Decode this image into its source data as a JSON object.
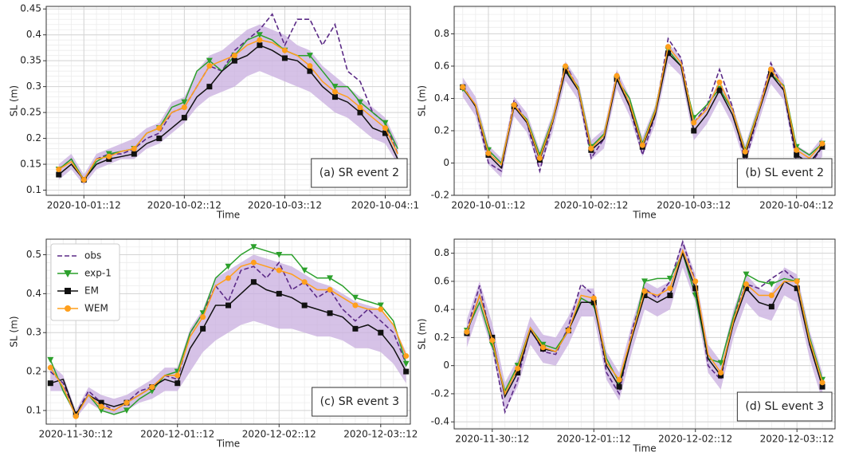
{
  "chart_data": [
    {
      "type": "line",
      "y_label": "SL (m)",
      "x_label": "Time",
      "annotation": "(a) SR event 2",
      "grid": true,
      "x": [
        "2020-10-01::06",
        "2020-10-01::09",
        "2020-10-01::12",
        "2020-10-01::15",
        "2020-10-01::18",
        "2020-10-01::21",
        "2020-10-02::00",
        "2020-10-02::03",
        "2020-10-02::06",
        "2020-10-02::09",
        "2020-10-02::12",
        "2020-10-02::15",
        "2020-10-02::18",
        "2020-10-02::21",
        "2020-10-03::00",
        "2020-10-03::03",
        "2020-10-03::06",
        "2020-10-03::09",
        "2020-10-03::12",
        "2020-10-03::15",
        "2020-10-03::18",
        "2020-10-03::21",
        "2020-10-04::00",
        "2020-10-04::03",
        "2020-10-04::06",
        "2020-10-04::09",
        "2020-10-04::12",
        "2020-10-04::15"
      ],
      "xlim": [
        "2020-10-01::03",
        "2020-10-04::18"
      ],
      "xticks": [
        "2020-10-01::12",
        "2020-10-02::12",
        "2020-10-03::12",
        {
          "value": "2020-10-04::12",
          "label": "2020-10-04::1"
        }
      ],
      "ylim": [
        0.09,
        0.455
      ],
      "yticks": [
        0.1,
        0.15,
        0.2,
        0.25,
        0.3,
        0.35,
        0.4,
        0.45
      ],
      "band": {
        "color": "#c8addf",
        "lower": [
          0.12,
          0.14,
          0.11,
          0.14,
          0.15,
          0.16,
          0.16,
          0.18,
          0.19,
          0.21,
          0.23,
          0.26,
          0.28,
          0.29,
          0.3,
          0.32,
          0.33,
          0.32,
          0.31,
          0.3,
          0.29,
          0.27,
          0.25,
          0.24,
          0.22,
          0.2,
          0.19,
          0.15
        ],
        "upper": [
          0.15,
          0.17,
          0.13,
          0.17,
          0.18,
          0.19,
          0.2,
          0.22,
          0.23,
          0.27,
          0.28,
          0.33,
          0.36,
          0.37,
          0.39,
          0.41,
          0.42,
          0.41,
          0.4,
          0.38,
          0.37,
          0.34,
          0.32,
          0.3,
          0.28,
          0.26,
          0.24,
          0.19
        ]
      },
      "series": [
        {
          "color": "#5b2a86",
          "dashed": true,
          "values": [
            0.14,
            0.16,
            0.12,
            0.16,
            0.17,
            0.17,
            0.18,
            0.2,
            0.21,
            0.25,
            0.26,
            0.3,
            0.34,
            0.33,
            0.37,
            0.39,
            0.41,
            0.44,
            0.38,
            0.43,
            0.43,
            0.38,
            0.42,
            0.33,
            0.31,
            0.25,
            0.23,
            0.17
          ]
        },
        {
          "color": "#2ca02c",
          "marker": "triangle-down",
          "values": [
            0.14,
            0.16,
            0.12,
            0.155,
            0.17,
            0.175,
            0.18,
            0.21,
            0.22,
            0.26,
            0.27,
            0.33,
            0.35,
            0.33,
            0.36,
            0.39,
            0.4,
            0.39,
            0.37,
            0.36,
            0.36,
            0.33,
            0.3,
            0.3,
            0.27,
            0.25,
            0.23,
            0.18
          ]
        },
        {
          "color": "#111111",
          "marker": "square",
          "values": [
            0.13,
            0.15,
            0.12,
            0.15,
            0.16,
            0.165,
            0.17,
            0.19,
            0.2,
            0.22,
            0.24,
            0.28,
            0.3,
            0.33,
            0.35,
            0.36,
            0.38,
            0.37,
            0.355,
            0.35,
            0.33,
            0.3,
            0.28,
            0.27,
            0.25,
            0.22,
            0.21,
            0.16
          ]
        },
        {
          "color": "#ff9f1c",
          "marker": "circle",
          "values": [
            0.14,
            0.155,
            0.12,
            0.16,
            0.165,
            0.175,
            0.18,
            0.21,
            0.22,
            0.25,
            0.26,
            0.3,
            0.34,
            0.35,
            0.36,
            0.38,
            0.39,
            0.385,
            0.37,
            0.36,
            0.34,
            0.31,
            0.29,
            0.28,
            0.26,
            0.24,
            0.22,
            0.17
          ]
        }
      ]
    },
    {
      "type": "line",
      "y_label": "SL (m)",
      "x_label": "Time",
      "annotation": "(b) SL event 2",
      "grid": true,
      "x": [
        "2020-10-01::06",
        "2020-10-01::09",
        "2020-10-01::12",
        "2020-10-01::15",
        "2020-10-01::18",
        "2020-10-01::21",
        "2020-10-02::00",
        "2020-10-02::03",
        "2020-10-02::06",
        "2020-10-02::09",
        "2020-10-02::12",
        "2020-10-02::15",
        "2020-10-02::18",
        "2020-10-02::21",
        "2020-10-03::00",
        "2020-10-03::03",
        "2020-10-03::06",
        "2020-10-03::09",
        "2020-10-03::12",
        "2020-10-03::15",
        "2020-10-03::18",
        "2020-10-03::21",
        "2020-10-04::00",
        "2020-10-04::03",
        "2020-10-04::06",
        "2020-10-04::09",
        "2020-10-04::12",
        "2020-10-04::15",
        "2020-10-04::18"
      ],
      "xlim": [
        "2020-10-01::04",
        "2020-10-04::21"
      ],
      "xticks": [
        "2020-10-01::12",
        "2020-10-02::12",
        "2020-10-03::12",
        "2020-10-04::12"
      ],
      "ylim": [
        -0.2,
        0.97
      ],
      "yticks": [
        -0.2,
        0.0,
        0.2,
        0.4,
        0.6,
        0.8
      ],
      "band": {
        "color": "#c8addf",
        "lower": [
          0.41,
          0.29,
          -0.01,
          -0.09,
          0.29,
          0.19,
          -0.04,
          0.19,
          0.51,
          0.39,
          0.02,
          0.09,
          0.46,
          0.29,
          0.04,
          0.24,
          0.62,
          0.54,
          0.14,
          0.24,
          0.39,
          0.24,
          -0.01,
          0.24,
          0.49,
          0.39,
          -0.01,
          -0.06,
          0.04
        ],
        "upper": [
          0.53,
          0.41,
          0.11,
          0.03,
          0.41,
          0.31,
          0.08,
          0.31,
          0.63,
          0.51,
          0.14,
          0.21,
          0.58,
          0.41,
          0.16,
          0.36,
          0.74,
          0.66,
          0.26,
          0.36,
          0.51,
          0.36,
          0.11,
          0.36,
          0.61,
          0.51,
          0.11,
          0.06,
          0.16
        ]
      },
      "series": [
        {
          "color": "#5b2a86",
          "dashed": true,
          "values": [
            0.48,
            0.35,
            0.0,
            -0.05,
            0.39,
            0.25,
            -0.05,
            0.25,
            0.62,
            0.45,
            0.03,
            0.15,
            0.55,
            0.35,
            0.05,
            0.3,
            0.77,
            0.65,
            0.25,
            0.35,
            0.58,
            0.35,
            0.0,
            0.3,
            0.62,
            0.45,
            0.0,
            -0.02,
            0.1
          ]
        },
        {
          "color": "#2ca02c",
          "marker": "triangle-down",
          "values": [
            0.46,
            0.36,
            0.08,
            0.0,
            0.35,
            0.27,
            0.05,
            0.27,
            0.58,
            0.47,
            0.1,
            0.18,
            0.52,
            0.4,
            0.12,
            0.33,
            0.7,
            0.6,
            0.28,
            0.36,
            0.46,
            0.33,
            0.08,
            0.32,
            0.55,
            0.48,
            0.1,
            0.05,
            0.12
          ]
        },
        {
          "color": "#111111",
          "marker": "square",
          "values": [
            0.47,
            0.35,
            0.05,
            -0.03,
            0.35,
            0.25,
            0.02,
            0.25,
            0.57,
            0.45,
            0.08,
            0.15,
            0.52,
            0.35,
            0.1,
            0.3,
            0.68,
            0.6,
            0.2,
            0.3,
            0.45,
            0.3,
            0.05,
            0.3,
            0.55,
            0.45,
            0.05,
            0.0,
            0.1
          ]
        },
        {
          "color": "#ff9f1c",
          "marker": "circle",
          "values": [
            0.47,
            0.36,
            0.06,
            -0.01,
            0.36,
            0.26,
            0.03,
            0.26,
            0.6,
            0.46,
            0.09,
            0.17,
            0.54,
            0.37,
            0.11,
            0.32,
            0.72,
            0.62,
            0.25,
            0.33,
            0.5,
            0.33,
            0.07,
            0.31,
            0.58,
            0.47,
            0.08,
            0.03,
            0.12
          ]
        }
      ]
    },
    {
      "type": "line",
      "y_label": "SL (m)",
      "x_label": "Time",
      "annotation": "(c) SR event 3",
      "grid": true,
      "legend": "upper left",
      "x": [
        "2020-11-30::06",
        "2020-11-30::09",
        "2020-11-30::12",
        "2020-11-30::15",
        "2020-11-30::18",
        "2020-11-30::21",
        "2020-12-01::00",
        "2020-12-01::03",
        "2020-12-01::06",
        "2020-12-01::09",
        "2020-12-01::12",
        "2020-12-01::15",
        "2020-12-01::18",
        "2020-12-01::21",
        "2020-12-02::00",
        "2020-12-02::03",
        "2020-12-02::06",
        "2020-12-02::09",
        "2020-12-02::12",
        "2020-12-02::15",
        "2020-12-02::18",
        "2020-12-02::21",
        "2020-12-03::00",
        "2020-12-03::03",
        "2020-12-03::06",
        "2020-12-03::09",
        "2020-12-03::12",
        "2020-12-03::15",
        "2020-12-03::18"
      ],
      "xlim": [
        "2020-11-30::05",
        "2020-12-03::19"
      ],
      "xticks": [
        "2020-11-30::12",
        "2020-12-01::12",
        "2020-12-02::12",
        "2020-12-03::12"
      ],
      "ylim": [
        0.065,
        0.54
      ],
      "yticks": [
        0.1,
        0.2,
        0.3,
        0.4,
        0.5
      ],
      "band": {
        "color": "#c8addf",
        "lower": [
          0.15,
          0.15,
          0.08,
          0.12,
          0.1,
          0.09,
          0.1,
          0.12,
          0.13,
          0.15,
          0.15,
          0.2,
          0.25,
          0.28,
          0.3,
          0.32,
          0.33,
          0.32,
          0.31,
          0.31,
          0.3,
          0.29,
          0.29,
          0.28,
          0.26,
          0.26,
          0.25,
          0.22,
          0.17
        ],
        "upper": [
          0.22,
          0.19,
          0.1,
          0.16,
          0.14,
          0.13,
          0.14,
          0.16,
          0.18,
          0.21,
          0.21,
          0.31,
          0.36,
          0.44,
          0.46,
          0.48,
          0.5,
          0.49,
          0.48,
          0.47,
          0.45,
          0.43,
          0.42,
          0.4,
          0.38,
          0.37,
          0.36,
          0.32,
          0.25
        ]
      },
      "series": [
        {
          "name": "obs",
          "color": "#5b2a86",
          "dashed": true,
          "values": [
            0.2,
            0.17,
            0.09,
            0.15,
            0.12,
            0.1,
            0.12,
            0.15,
            0.16,
            0.19,
            0.18,
            0.3,
            0.35,
            0.42,
            0.38,
            0.46,
            0.47,
            0.44,
            0.48,
            0.41,
            0.43,
            0.39,
            0.41,
            0.36,
            0.33,
            0.36,
            0.33,
            0.3,
            0.22
          ]
        },
        {
          "name": "exp-1",
          "color": "#2ca02c",
          "marker": "triangle-down",
          "values": [
            0.23,
            0.15,
            0.09,
            0.14,
            0.1,
            0.09,
            0.1,
            0.13,
            0.15,
            0.19,
            0.2,
            0.3,
            0.35,
            0.44,
            0.47,
            0.5,
            0.52,
            0.51,
            0.5,
            0.5,
            0.46,
            0.44,
            0.44,
            0.42,
            0.39,
            0.38,
            0.37,
            0.33,
            0.22
          ]
        },
        {
          "name": "EM",
          "color": "#111111",
          "marker": "square",
          "values": [
            0.17,
            0.18,
            0.09,
            0.14,
            0.12,
            0.11,
            0.12,
            0.14,
            0.16,
            0.18,
            0.17,
            0.26,
            0.31,
            0.37,
            0.37,
            0.4,
            0.43,
            0.41,
            0.4,
            0.39,
            0.37,
            0.36,
            0.35,
            0.34,
            0.31,
            0.32,
            0.3,
            0.26,
            0.2
          ]
        },
        {
          "name": "WEM",
          "color": "#ff9f1c",
          "marker": "circle",
          "values": [
            0.21,
            0.16,
            0.085,
            0.14,
            0.11,
            0.1,
            0.12,
            0.14,
            0.16,
            0.19,
            0.19,
            0.29,
            0.34,
            0.42,
            0.44,
            0.47,
            0.48,
            0.47,
            0.46,
            0.45,
            0.43,
            0.41,
            0.41,
            0.39,
            0.37,
            0.36,
            0.36,
            0.32,
            0.24
          ]
        }
      ]
    },
    {
      "type": "line",
      "y_label": "SL (m)",
      "x_label": "Time",
      "annotation": "(d) SL event 3",
      "grid": true,
      "x": [
        "2020-11-30::06",
        "2020-11-30::09",
        "2020-11-30::12",
        "2020-11-30::15",
        "2020-11-30::18",
        "2020-11-30::21",
        "2020-12-01::00",
        "2020-12-01::03",
        "2020-12-01::06",
        "2020-12-01::09",
        "2020-12-01::12",
        "2020-12-01::15",
        "2020-12-01::18",
        "2020-12-01::21",
        "2020-12-02::00",
        "2020-12-02::03",
        "2020-12-02::06",
        "2020-12-02::09",
        "2020-12-02::12",
        "2020-12-02::15",
        "2020-12-02::18",
        "2020-12-02::21",
        "2020-12-03::00",
        "2020-12-03::03",
        "2020-12-03::06",
        "2020-12-03::09",
        "2020-12-03::12",
        "2020-12-03::15",
        "2020-12-03::18"
      ],
      "xlim": [
        "2020-11-30::03",
        "2020-12-03::21"
      ],
      "xticks": [
        "2020-11-30::12",
        "2020-12-01::12",
        "2020-12-02::12",
        "2020-12-03::12"
      ],
      "ylim": [
        -0.45,
        0.9
      ],
      "yticks": [
        -0.4,
        -0.2,
        0.0,
        0.2,
        0.4,
        0.6,
        0.8
      ],
      "band": {
        "color": "#c8addf",
        "lower": [
          0.13,
          0.4,
          0.1,
          -0.32,
          -0.15,
          0.15,
          0.02,
          0.0,
          0.15,
          0.35,
          0.35,
          -0.1,
          -0.25,
          0.1,
          0.4,
          0.35,
          0.4,
          0.7,
          0.45,
          -0.05,
          -0.17,
          0.2,
          0.45,
          0.35,
          0.32,
          0.5,
          0.45,
          0.05,
          -0.25
        ],
        "upper": [
          0.33,
          0.6,
          0.3,
          -0.12,
          0.05,
          0.35,
          0.22,
          0.2,
          0.35,
          0.55,
          0.55,
          0.1,
          -0.05,
          0.3,
          0.6,
          0.55,
          0.6,
          0.9,
          0.65,
          0.15,
          0.03,
          0.4,
          0.65,
          0.55,
          0.52,
          0.7,
          0.65,
          0.25,
          -0.05
        ]
      },
      "series": [
        {
          "color": "#5b2a86",
          "dashed": true,
          "values": [
            0.25,
            0.57,
            0.15,
            -0.33,
            -0.1,
            0.27,
            0.1,
            0.08,
            0.28,
            0.58,
            0.5,
            -0.05,
            -0.2,
            0.25,
            0.55,
            0.48,
            0.6,
            0.88,
            0.6,
            0.0,
            -0.1,
            0.35,
            0.58,
            0.55,
            0.62,
            0.68,
            0.6,
            0.15,
            -0.1
          ]
        },
        {
          "color": "#2ca02c",
          "marker": "triangle-down",
          "values": [
            0.25,
            0.45,
            0.15,
            -0.18,
            0.0,
            0.27,
            0.15,
            0.12,
            0.25,
            0.48,
            0.43,
            0.05,
            -0.12,
            0.2,
            0.6,
            0.62,
            0.62,
            0.8,
            0.5,
            0.05,
            0.02,
            0.35,
            0.65,
            0.6,
            0.58,
            0.62,
            0.6,
            0.2,
            -0.1
          ]
        },
        {
          "color": "#111111",
          "marker": "square",
          "values": [
            0.23,
            0.5,
            0.2,
            -0.22,
            -0.05,
            0.25,
            0.12,
            0.1,
            0.25,
            0.45,
            0.45,
            0.0,
            -0.15,
            0.2,
            0.5,
            0.45,
            0.5,
            0.8,
            0.55,
            0.05,
            -0.07,
            0.3,
            0.55,
            0.45,
            0.42,
            0.6,
            0.55,
            0.15,
            -0.15
          ]
        },
        {
          "color": "#ff9f1c",
          "marker": "circle",
          "values": [
            0.24,
            0.5,
            0.18,
            -0.2,
            -0.02,
            0.27,
            0.13,
            0.1,
            0.25,
            0.5,
            0.48,
            0.02,
            -0.1,
            0.22,
            0.53,
            0.5,
            0.55,
            0.82,
            0.6,
            0.08,
            -0.05,
            0.32,
            0.58,
            0.5,
            0.5,
            0.6,
            0.6,
            0.18,
            -0.12
          ]
        }
      ]
    }
  ]
}
